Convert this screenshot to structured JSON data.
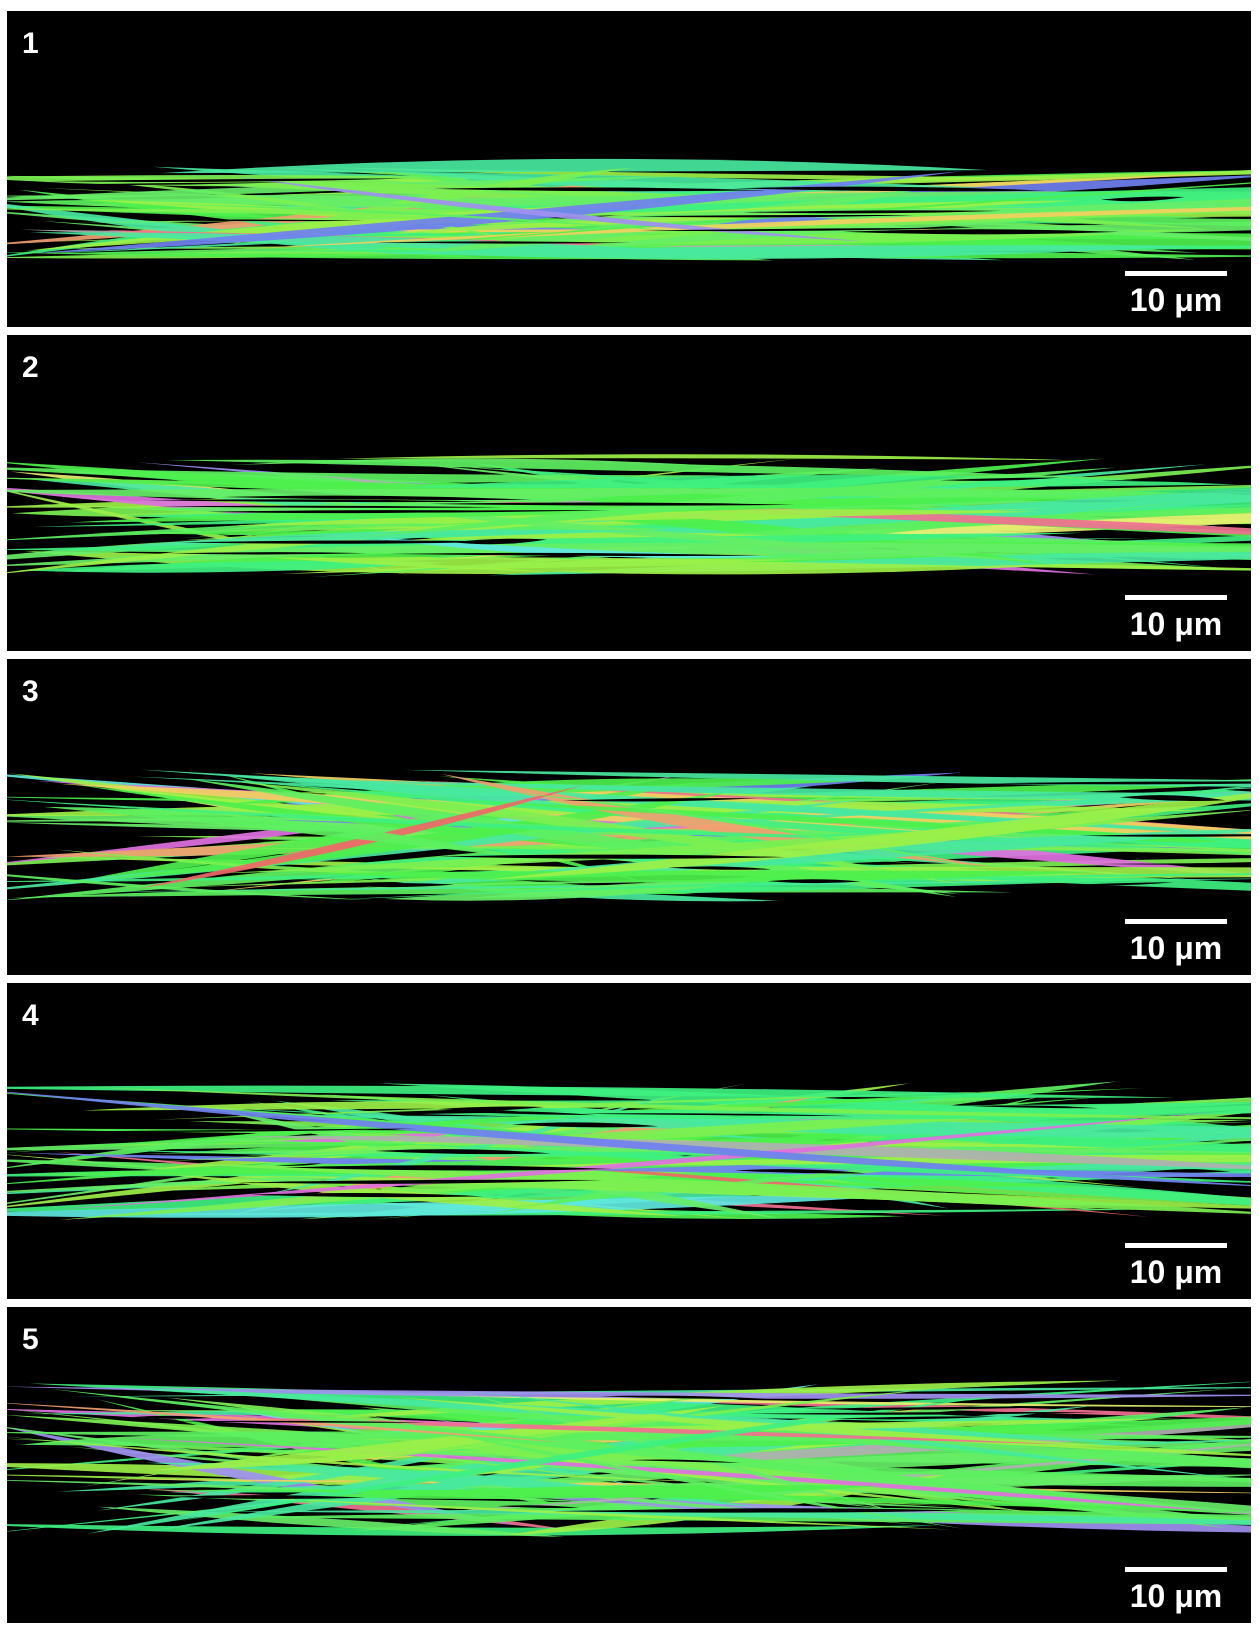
{
  "panels": [
    {
      "label": "1",
      "scale_bar": "10 μm"
    },
    {
      "label": "2",
      "scale_bar": "10 μm"
    },
    {
      "label": "3",
      "scale_bar": "10 μm"
    },
    {
      "label": "4",
      "scale_bar": "10 μm"
    },
    {
      "label": "5",
      "scale_bar": "10 μm"
    }
  ]
}
